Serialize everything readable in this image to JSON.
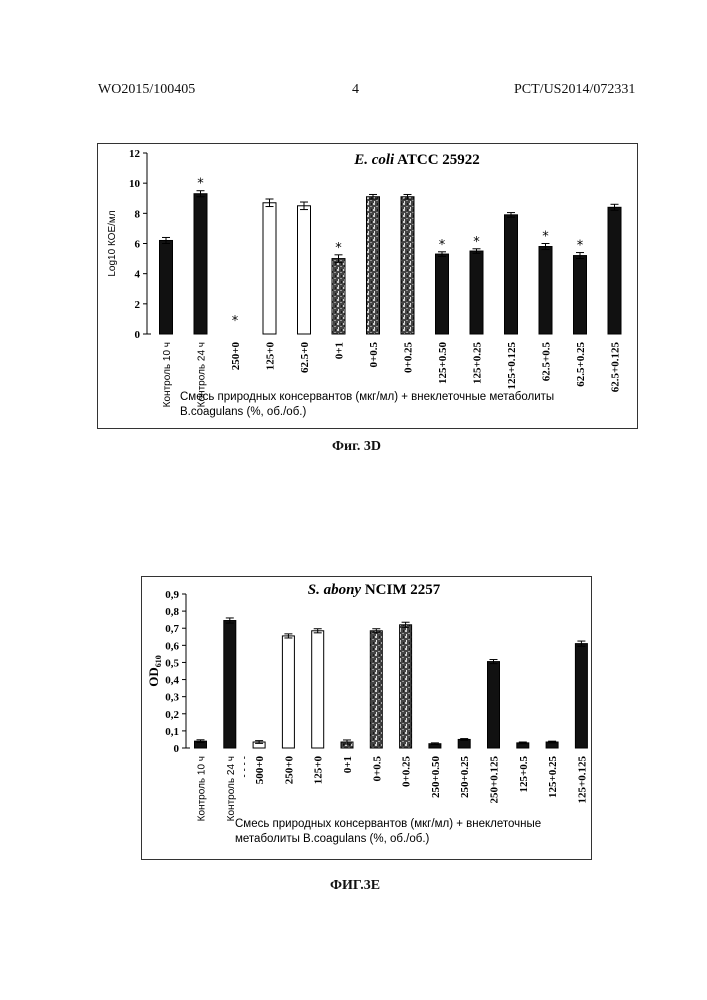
{
  "header": {
    "left": "WO2015/100405",
    "center": "4",
    "right": "PCT/US2014/072331"
  },
  "captions": {
    "fig_d": "Фиг. 3D",
    "fig_e": "ФИГ.3E"
  },
  "chart_data": [
    {
      "type": "bar",
      "title_italic": "E. coli",
      "title_rest": " ATCC 25922",
      "ylabel": "Log10 КОЕ/мл",
      "xlabel": "Смесь природных консервантов (мкг/мл) + внеклеточные метаболиты B.coagulans (%, об./об.)",
      "xlabel_lines": [
        "Смесь природных консервантов (мкг/мл) + внеклеточные метаболиты",
        "B.coagulans (%, об./об.)"
      ],
      "ylim": [
        0,
        12
      ],
      "yticks": [
        "0",
        "2",
        "4",
        "6",
        "8",
        "10",
        "12"
      ],
      "categories": [
        "Контроль 10 ч",
        "Контроль 24 ч",
        "250+0",
        "125+0",
        "62.5+0",
        "0+1",
        "0+0.5",
        "0+0.25",
        "125+0.50",
        "125+0.25",
        "125+0.125",
        "62.5+0.5",
        "62.5+0.25",
        "62.5+0.125"
      ],
      "values": [
        6.2,
        9.3,
        0,
        8.7,
        8.5,
        5.0,
        9.1,
        9.1,
        5.3,
        5.5,
        7.9,
        5.8,
        5.2,
        8.4
      ],
      "errors": [
        0.2,
        0.2,
        0,
        0.25,
        0.25,
        0.25,
        0.15,
        0.15,
        0.15,
        0.15,
        0.15,
        0.2,
        0.2,
        0.2
      ],
      "fill": [
        "black",
        "black",
        "none",
        "white",
        "white",
        "pattern",
        "pattern",
        "pattern",
        "black",
        "black",
        "black",
        "black",
        "black",
        "black"
      ],
      "significance": [
        "",
        "*",
        "*",
        "",
        "",
        "*",
        "",
        "",
        "*",
        "*",
        "",
        "*",
        "*",
        ""
      ],
      "star": "*"
    },
    {
      "type": "bar",
      "title_italic": "S. abony",
      "title_rest": " NCIM 2257",
      "ylabel": "OD",
      "ylabel_sub": "610",
      "xlabel": "Смесь природных консервантов (мкг/мл) + внеклеточные метаболиты B.coagulans (%, об./об.)",
      "xlabel_lines": [
        "Смесь природных консервантов (мкг/мл) + внеклеточные",
        "метаболиты B.coagulans (%, об./об.)"
      ],
      "ylim": [
        0,
        0.9
      ],
      "yticks": [
        "0",
        "0,1",
        "0,2",
        "0,3",
        "0,4",
        "0,5",
        "0,6",
        "0,7",
        "0,8",
        "0,9"
      ],
      "categories": [
        "Контроль 10 ч",
        "Контроль 24 ч",
        "500+0",
        "250+0",
        "125+0",
        "0+1",
        "0+0.5",
        "0+0.25",
        "250+0.50",
        "250+0.25",
        "250+0.125",
        "125+0.5",
        "125+0.25",
        "125+0.125"
      ],
      "values": [
        0.04,
        0.745,
        0.035,
        0.655,
        0.685,
        0.035,
        0.685,
        0.72,
        0.025,
        0.05,
        0.505,
        0.03,
        0.035,
        0.61
      ],
      "errors": [
        0.008,
        0.015,
        0.008,
        0.012,
        0.012,
        0.012,
        0.012,
        0.015,
        0.005,
        0.005,
        0.012,
        0.005,
        0.005,
        0.015
      ],
      "fill": [
        "black",
        "black",
        "white",
        "white",
        "white",
        "pattern",
        "pattern",
        "pattern",
        "black",
        "black",
        "black",
        "black",
        "black",
        "black"
      ],
      "significance": [
        "",
        "",
        "",
        "",
        "",
        "",
        "",
        "",
        "",
        "",
        "",
        "",
        "",
        ""
      ],
      "separator": "- - - -"
    }
  ]
}
